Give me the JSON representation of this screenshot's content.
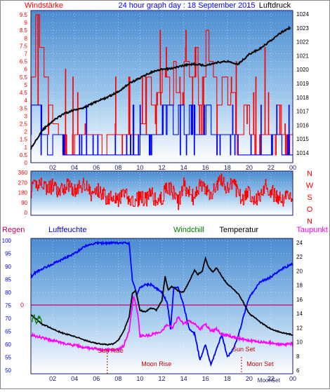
{
  "colors": {
    "wind_gust": "#ff0000",
    "wind_speed": "#0000ff",
    "pressure": "#000000",
    "wind_dir": "#ff0000",
    "humidity": "#0000ff",
    "temperature": "#000000",
    "windchill": "#008000",
    "dewpoint": "#ff00ff",
    "rain_line": "#cc0066",
    "label_blue": "#0000ff",
    "label_red": "#ff0000"
  },
  "chart_data": [
    {
      "type": "bar",
      "title": "24 hour graph day : 18 September 2015",
      "left_axis_label": "Windstärke",
      "right_axis_label": "Luftdruck",
      "left_ticks": [
        "0",
        "0.5",
        "1",
        "1.5",
        "2",
        "2.5",
        "3",
        "3.5",
        "4",
        "4.5",
        "5",
        "5.5",
        "6",
        "6.5",
        "7",
        "7.5",
        "8",
        "8.5",
        "9",
        "9.5"
      ],
      "right_ticks": [
        "1014",
        "1015",
        "1016",
        "1017",
        "1018",
        "1019",
        "1020",
        "1021",
        "1022",
        "1023",
        "1024"
      ],
      "x_ticks": [
        "02",
        "04",
        "06",
        "08",
        "10",
        "12",
        "14",
        "16",
        "18",
        "20",
        "22",
        "00"
      ],
      "ylim_left": [
        0,
        9.5
      ],
      "ylim_right": [
        1014,
        1024
      ],
      "series": [
        {
          "key": "gust",
          "color": "#ff0000",
          "hours": [
            0,
            0.4,
            0.8,
            1.2,
            1.6,
            2,
            2.5,
            3,
            4,
            5,
            6,
            6.5,
            7,
            8,
            9,
            10,
            10.5,
            11,
            11.5,
            12,
            12.3,
            12.7,
            13,
            13.3,
            13.7,
            14,
            14.5,
            15,
            15.3,
            15.7,
            16,
            16.3,
            16.7,
            17,
            17.5,
            18,
            18.3,
            18.7,
            19,
            19.5,
            20,
            20.5,
            21,
            21.5,
            22,
            22.5,
            23,
            23.3,
            23.7
          ],
          "values": [
            5.5,
            9.5,
            7.4,
            5.5,
            3.7,
            2.5,
            1.8,
            0.5,
            1.8,
            1.8,
            1.8,
            0.5,
            1.8,
            1.8,
            1.8,
            2.5,
            5.5,
            3.7,
            4.5,
            6,
            5.5,
            3.7,
            6.5,
            4.5,
            3.7,
            6.5,
            5.5,
            7.4,
            3.7,
            5.5,
            8.5,
            6.5,
            5.5,
            3.7,
            5.5,
            3.7,
            4.5,
            1.8,
            1.8,
            3.7,
            1.8,
            0.5,
            1.8,
            1.8,
            1.8,
            3.7,
            1.8,
            0.5,
            1.8
          ]
        },
        {
          "key": "speed",
          "color": "#0000ff",
          "hours": [
            0,
            0.5,
            1,
            1.5,
            2,
            3,
            4,
            6,
            8,
            9,
            9.5,
            10,
            11,
            12,
            13,
            13.5,
            14,
            14.5,
            15,
            16,
            16.5,
            17,
            17.5,
            18,
            19,
            20,
            21,
            22,
            23
          ],
          "values": [
            3.7,
            3.7,
            1.8,
            0.5,
            1.8,
            0.5,
            0.5,
            0.5,
            0.5,
            0.5,
            0.5,
            1.8,
            1.8,
            3.7,
            1.8,
            3.7,
            1.8,
            3.7,
            1.8,
            3.7,
            1.8,
            1.8,
            1.8,
            1.8,
            0.5,
            0.5,
            0.5,
            1.8,
            0.5
          ]
        },
        {
          "key": "pressure",
          "color": "#000000",
          "hours": [
            0,
            1,
            2,
            3,
            4,
            5,
            6,
            7,
            8,
            9,
            10,
            11,
            12,
            13,
            14,
            15,
            16,
            17,
            18,
            19,
            20,
            21,
            22,
            23,
            23.7
          ],
          "values": [
            1014.3,
            1015.6,
            1016.3,
            1016.8,
            1017.1,
            1017.3,
            1017.7,
            1018.0,
            1018.4,
            1019.0,
            1019.4,
            1019.8,
            1020.0,
            1020.1,
            1020.3,
            1020.4,
            1020.3,
            1020.5,
            1020.6,
            1020.4,
            1021.1,
            1021.5,
            1022.1,
            1022.7,
            1023.0
          ]
        }
      ]
    },
    {
      "type": "line",
      "side_labels": [
        "N",
        "W",
        "S",
        "O",
        "N"
      ],
      "left_ticks": [
        "360",
        "270",
        "180",
        "90",
        "0"
      ],
      "ylim": [
        0,
        360
      ],
      "series": [
        {
          "key": "wind_dir",
          "color": "#ff0000",
          "hours": [
            0,
            0.5,
            1,
            1.5,
            2,
            2.5,
            3,
            3.5,
            4,
            4.5,
            5,
            5.5,
            6,
            6.5,
            7,
            7.5,
            8,
            8.5,
            9,
            9.5,
            10,
            10.5,
            11,
            11.5,
            12,
            12.5,
            13,
            13.5,
            14,
            14.5,
            15,
            15.5,
            16,
            16.5,
            17,
            17.5,
            18,
            18.5,
            19,
            19.5,
            20,
            20.5,
            21,
            21.5,
            22,
            22.5,
            23,
            23.5,
            24
          ],
          "values": [
            200,
            250,
            280,
            210,
            240,
            170,
            220,
            260,
            190,
            230,
            270,
            150,
            200,
            180,
            120,
            170,
            100,
            170,
            120,
            80,
            150,
            110,
            170,
            90,
            130,
            240,
            180,
            90,
            250,
            170,
            120,
            270,
            190,
            160,
            250,
            300,
            200,
            280,
            160,
            130,
            180,
            110,
            160,
            240,
            190,
            140,
            110,
            170,
            130
          ]
        }
      ]
    },
    {
      "type": "line",
      "legend": [
        "Regen",
        "Luftfeuchte",
        "Windchill",
        "Temperatur",
        "Taupunkt"
      ],
      "left_ticks": [
        "50",
        "55",
        "60",
        "65",
        "70",
        "75",
        "80",
        "85",
        "90",
        "95",
        "100"
      ],
      "right_ticks": [
        "6",
        "8",
        "10",
        "12",
        "14",
        "16",
        "18",
        "20",
        "22",
        "24"
      ],
      "rain_value": "0",
      "ylim_left": [
        50,
        100
      ],
      "ylim_right": [
        6,
        24
      ],
      "annotations": {
        "sun_rise": "Sun Rise",
        "sun_set": "Sun Set",
        "moon_rise": "Moon Rise",
        "moon_set": "Moon Set",
        "moon_set_short": "MoonSet"
      },
      "series": [
        {
          "key": "humidity",
          "color": "#0000ff",
          "hours": [
            0,
            0.5,
            1,
            2,
            3,
            4,
            5,
            6,
            7,
            8,
            9,
            9.3,
            9.7,
            10,
            10.5,
            11,
            12,
            12.5,
            12.8,
            13.1,
            13.5,
            14,
            14.5,
            15,
            15.5,
            16,
            16.5,
            17,
            17.5,
            18,
            18.5,
            19,
            19.5,
            20,
            21,
            22,
            23,
            24
          ],
          "values": [
            86,
            88,
            89,
            91,
            93,
            95,
            98,
            99,
            99,
            99,
            99,
            85,
            79,
            82,
            83,
            83,
            80,
            76,
            66,
            82,
            82,
            75,
            66,
            64,
            54,
            60,
            52,
            58,
            64,
            55,
            58,
            63,
            71,
            78,
            84,
            86,
            89,
            91
          ]
        },
        {
          "key": "temperature",
          "color": "#000000",
          "hours": [
            0,
            0.5,
            1,
            1.5,
            2,
            3,
            4,
            5,
            6,
            7,
            7.5,
            8,
            8.5,
            9,
            9.3,
            9.6,
            10,
            10.5,
            11,
            11.5,
            12,
            12.3,
            12.6,
            12.9,
            13.2,
            13.5,
            14,
            14.5,
            15,
            15.3,
            15.7,
            16,
            16.3,
            16.7,
            17,
            17.5,
            18,
            18.5,
            19,
            19.5,
            20,
            21,
            22,
            23,
            24
          ],
          "values": [
            13.8,
            13.2,
            12.5,
            12.2,
            11.8,
            11.2,
            10.8,
            10.2,
            9.8,
            9.6,
            9.7,
            10.2,
            11.5,
            13.5,
            16.8,
            17.2,
            14.5,
            14.2,
            14.8,
            14.5,
            15.8,
            19.2,
            17.3,
            17.8,
            17.6,
            17.2,
            17.0,
            18.5,
            20.1,
            19.5,
            20.0,
            21.8,
            20.5,
            19.8,
            20.5,
            19.2,
            18.2,
            17.5,
            16.8,
            15.5,
            14.0,
            12.8,
            11.8,
            11.3,
            11.0
          ]
        },
        {
          "key": "dewpoint",
          "color": "#ff00ff",
          "hours": [
            0,
            1,
            2,
            3,
            4,
            5,
            6,
            7,
            8,
            8.5,
            9,
            9.4,
            9.8,
            10,
            11,
            12,
            12.5,
            13,
            13.5,
            14,
            14.5,
            15,
            15.5,
            16,
            16.5,
            17,
            17.5,
            18,
            19,
            20,
            21,
            22,
            23,
            24
          ],
          "values": [
            11.0,
            10.6,
            10.2,
            9.8,
            9.5,
            9.2,
            9.0,
            8.8,
            8.9,
            9.5,
            11.5,
            16.5,
            14.0,
            10.8,
            11.0,
            11.5,
            12.5,
            12.0,
            13.5,
            12.5,
            13.0,
            12.5,
            11.8,
            12.5,
            11.5,
            11.8,
            11.0,
            10.9,
            10.5,
            10.2,
            10.0,
            9.9,
            9.6,
            9.8
          ]
        },
        {
          "key": "windchill",
          "color": "#008000",
          "hours": [
            0.1,
            0.3,
            0.5,
            0.8,
            1.0
          ],
          "values": [
            13.2,
            13.6,
            12.8,
            13.4,
            12.9
          ]
        }
      ]
    }
  ]
}
